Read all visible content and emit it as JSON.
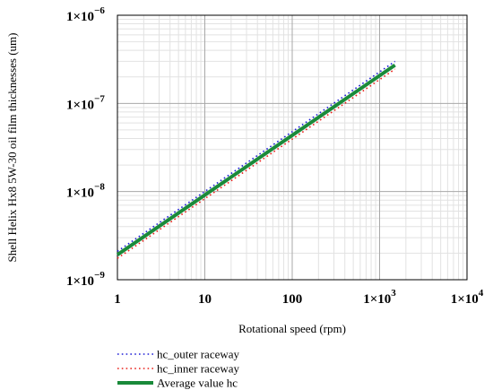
{
  "chart_data": {
    "type": "line",
    "xlabel": "Rotational speed (rpm)",
    "ylabel": "Shell Helix Hx8 5W-30 oil film thicknesses (um)",
    "xscale": "log",
    "yscale": "log",
    "xlim": [
      1,
      10000
    ],
    "ylim": [
      1e-09,
      1e-06
    ],
    "grid": true,
    "legend_position": "bottom-left",
    "x_ticks": [
      {
        "value": 1,
        "mantissa": "1",
        "exponent": ""
      },
      {
        "value": 10,
        "mantissa": "10",
        "exponent": ""
      },
      {
        "value": 100,
        "mantissa": "100",
        "exponent": ""
      },
      {
        "value": 1000,
        "mantissa": "1×10",
        "exponent": "3"
      },
      {
        "value": 10000,
        "mantissa": "1×10",
        "exponent": "4"
      }
    ],
    "y_ticks": [
      {
        "value": 1e-09,
        "mantissa": "1×10",
        "exponent": "−9"
      },
      {
        "value": 1e-08,
        "mantissa": "1×10",
        "exponent": "−8"
      },
      {
        "value": 1e-07,
        "mantissa": "1×10",
        "exponent": "−7"
      },
      {
        "value": 1e-06,
        "mantissa": "1×10",
        "exponent": "−6"
      }
    ],
    "series": [
      {
        "name": "hc_outer raceway",
        "color": "#1f1fd6",
        "style": "dotted",
        "x": [
          1,
          1500
        ],
        "y": [
          2.1e-09,
          3e-07
        ]
      },
      {
        "name": "hc_inner raceway",
        "color": "#e8201a",
        "style": "dotted",
        "x": [
          1,
          1500
        ],
        "y": [
          1.75e-09,
          2.45e-07
        ]
      },
      {
        "name": "Average value hc",
        "color": "#1a8a3a",
        "style": "solid",
        "x": [
          1,
          1500
        ],
        "y": [
          1.92e-09,
          2.72e-07
        ]
      }
    ]
  }
}
